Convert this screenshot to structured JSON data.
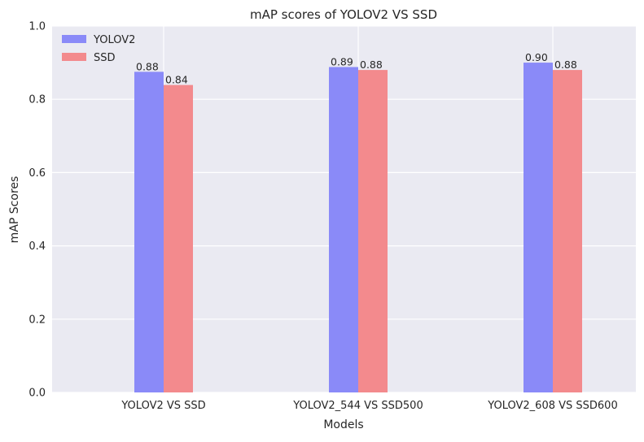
{
  "chart_data": {
    "type": "bar",
    "title": "mAP scores of YOLOV2 VS SSD",
    "xlabel": "Models",
    "ylabel": "mAP Scores",
    "categories": [
      "YOLOV2 VS SSD",
      "YOLOV2_544 VS SSD500",
      "YOLOV2_608 VS SSD600"
    ],
    "series": [
      {
        "name": "YOLOV2",
        "values": [
          0.875,
          0.888,
          0.9
        ],
        "labels": [
          "0.88",
          "0.89",
          "0.90"
        ],
        "color": "#8a8af8"
      },
      {
        "name": "SSD",
        "values": [
          0.839,
          0.88,
          0.88
        ],
        "labels": [
          "0.84",
          "0.88",
          "0.88"
        ],
        "color": "#f38a8d"
      }
    ],
    "ylim": [
      0,
      1.0
    ],
    "yticks": [
      0.0,
      0.2,
      0.4,
      0.6,
      0.8,
      1.0
    ],
    "ytick_labels": [
      "0.0",
      "0.2",
      "0.4",
      "0.6",
      "0.8",
      "1.0"
    ],
    "grid": true,
    "legend_position": "top-left",
    "background_color": "#eaeaf2",
    "grid_color": "#ffffff"
  }
}
